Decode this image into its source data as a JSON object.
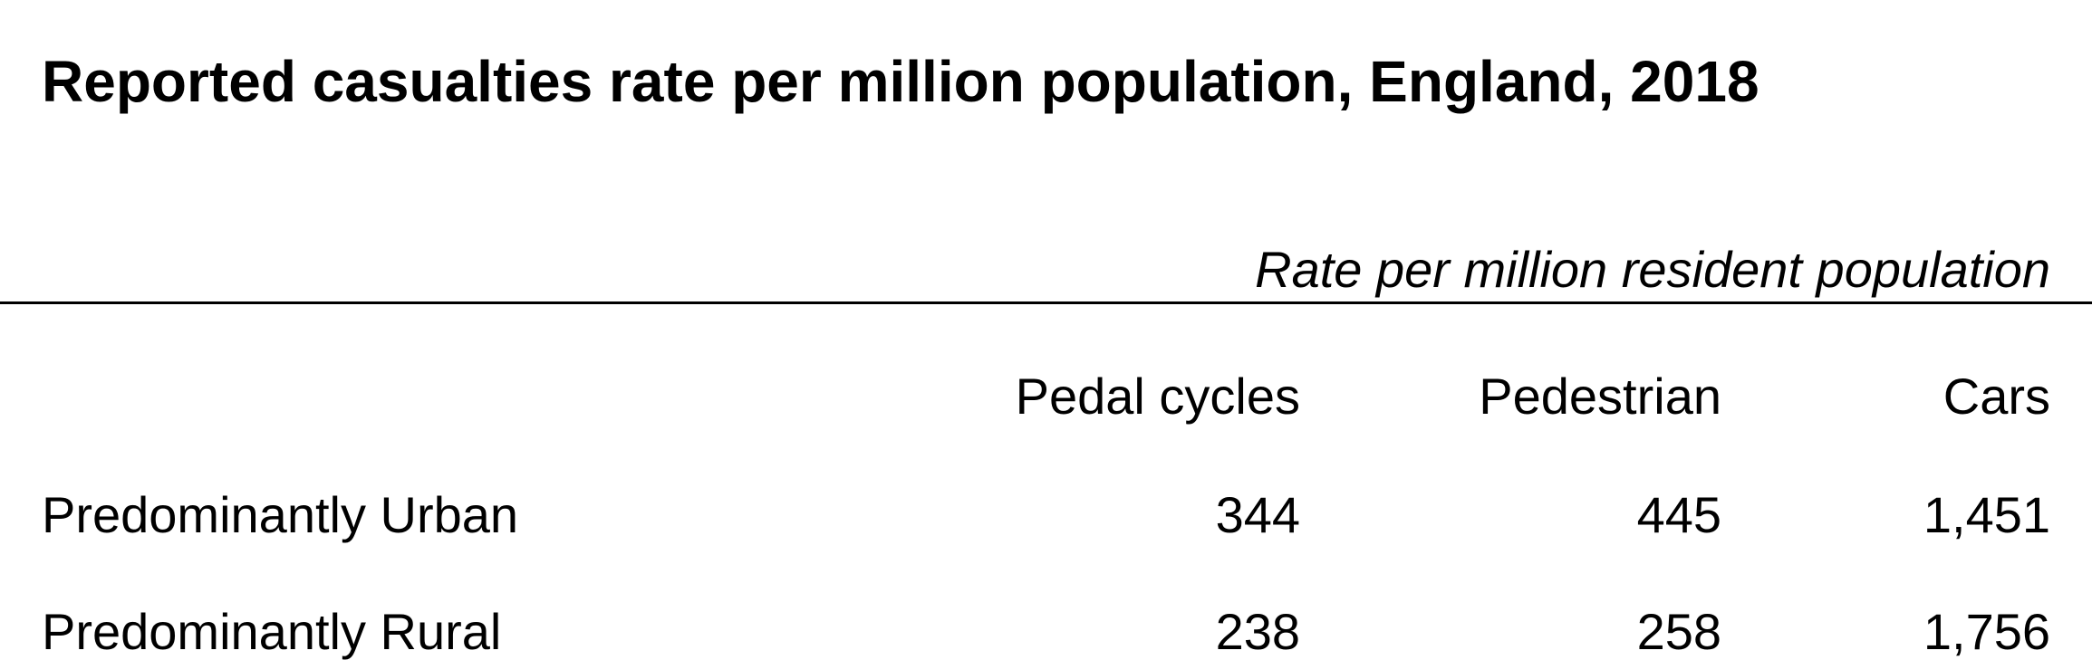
{
  "chart_data": {
    "type": "table",
    "title": "Reported casualties rate per million population, England, 2018",
    "units_label": "Rate per million resident population",
    "columns": [
      "Pedal cycles",
      "Pedestrian",
      "Cars"
    ],
    "rows": [
      {
        "label": "Predominantly Urban",
        "values": [
          "344",
          "445",
          "1,451"
        ]
      },
      {
        "label": "Predominantly Rural",
        "values": [
          "238",
          "258",
          "1,756"
        ]
      }
    ]
  }
}
